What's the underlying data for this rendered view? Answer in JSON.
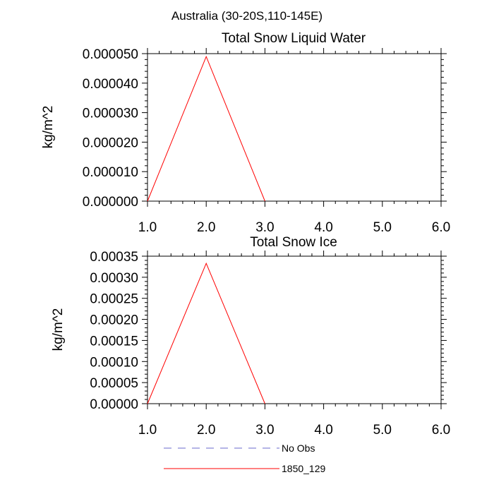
{
  "figure": {
    "title": "Australia (30-20S,110-145E)"
  },
  "chart_data": [
    {
      "type": "line",
      "title": "Total Snow Liquid Water",
      "ylabel": "kg/m^2",
      "xlim": [
        1.0,
        6.0
      ],
      "ylim": [
        0.0,
        5e-05
      ],
      "xticks": [
        "1.0",
        "2.0",
        "3.0",
        "4.0",
        "5.0",
        "6.0"
      ],
      "yticks": [
        "0.000000",
        "0.000010",
        "0.000020",
        "0.000030",
        "0.000040",
        "0.000050"
      ],
      "series": [
        {
          "name": "1850_129",
          "color": "#ff0000",
          "x": [
            1,
            2,
            3
          ],
          "y": [
            0.0,
            4.9e-05,
            0.0
          ]
        }
      ]
    },
    {
      "type": "line",
      "title": "Total Snow Ice",
      "ylabel": "kg/m^2",
      "xlim": [
        1.0,
        6.0
      ],
      "ylim": [
        0.0,
        0.00035
      ],
      "xticks": [
        "1.0",
        "2.0",
        "3.0",
        "4.0",
        "5.0",
        "6.0"
      ],
      "yticks": [
        "0.00000",
        "0.00005",
        "0.00010",
        "0.00015",
        "0.00020",
        "0.00025",
        "0.00030",
        "0.00035"
      ],
      "series": [
        {
          "name": "1850_129",
          "color": "#ff0000",
          "x": [
            1,
            2,
            3
          ],
          "y": [
            0.0,
            0.000333,
            0.0
          ]
        }
      ]
    }
  ],
  "legend": {
    "items": [
      {
        "label": "No Obs",
        "color": "#6a6acd",
        "style": "dashed"
      },
      {
        "label": "1850_129",
        "color": "#ff0000",
        "style": "solid"
      }
    ]
  }
}
